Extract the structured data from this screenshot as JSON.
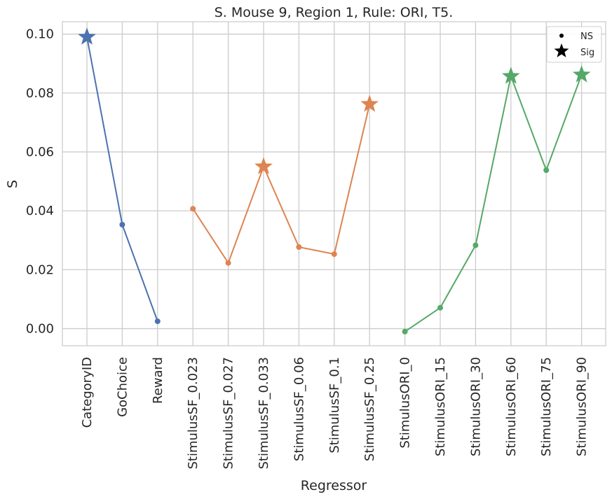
{
  "chart_data": {
    "type": "line",
    "title": "S. Mouse 9, Region 1, Rule: ORI, T5.",
    "xlabel": "Regressor",
    "ylabel": "S",
    "categories": [
      "CategoryID",
      "GoChoice",
      "Reward",
      "StimulusSF_0.023",
      "StimulusSF_0.027",
      "StimulusSF_0.033",
      "StimulusSF_0.06",
      "StimulusSF_0.1",
      "StimulusSF_0.25",
      "StimulusORI_0",
      "StimulusORI_15",
      "StimulusORI_30",
      "StimulusORI_60",
      "StimulusORI_75",
      "StimulusORI_90"
    ],
    "ylim": [
      -0.0058,
      0.1042
    ],
    "yticks": [
      0.0,
      0.02,
      0.04,
      0.06,
      0.08,
      0.1
    ],
    "ytick_labels": [
      "0.00",
      "0.02",
      "0.04",
      "0.06",
      "0.08",
      "0.10"
    ],
    "grid": true,
    "legend": {
      "placement": "top-right",
      "entries": [
        {
          "label": "NS",
          "marker": "dot"
        },
        {
          "label": "Sig",
          "marker": "star"
        }
      ]
    },
    "series": [
      {
        "color": "#4c72b0",
        "x": [
          "CategoryID",
          "GoChoice",
          "Reward"
        ],
        "values": [
          0.099,
          0.0353,
          0.0025
        ],
        "significant": [
          true,
          false,
          false
        ]
      },
      {
        "color": "#dd8452",
        "x": [
          "StimulusSF_0.023",
          "StimulusSF_0.027",
          "StimulusSF_0.033",
          "StimulusSF_0.06",
          "StimulusSF_0.1",
          "StimulusSF_0.25"
        ],
        "values": [
          0.0407,
          0.0223,
          0.055,
          0.0277,
          0.0253,
          0.0762
        ],
        "significant": [
          false,
          false,
          true,
          false,
          false,
          true
        ]
      },
      {
        "color": "#55a868",
        "x": [
          "StimulusORI_0",
          "StimulusORI_15",
          "StimulusORI_30",
          "StimulusORI_60",
          "StimulusORI_75",
          "StimulusORI_90"
        ],
        "values": [
          -0.001,
          0.0071,
          0.0283,
          0.0857,
          0.0538,
          0.0862
        ],
        "significant": [
          false,
          false,
          false,
          true,
          false,
          true
        ]
      }
    ]
  }
}
